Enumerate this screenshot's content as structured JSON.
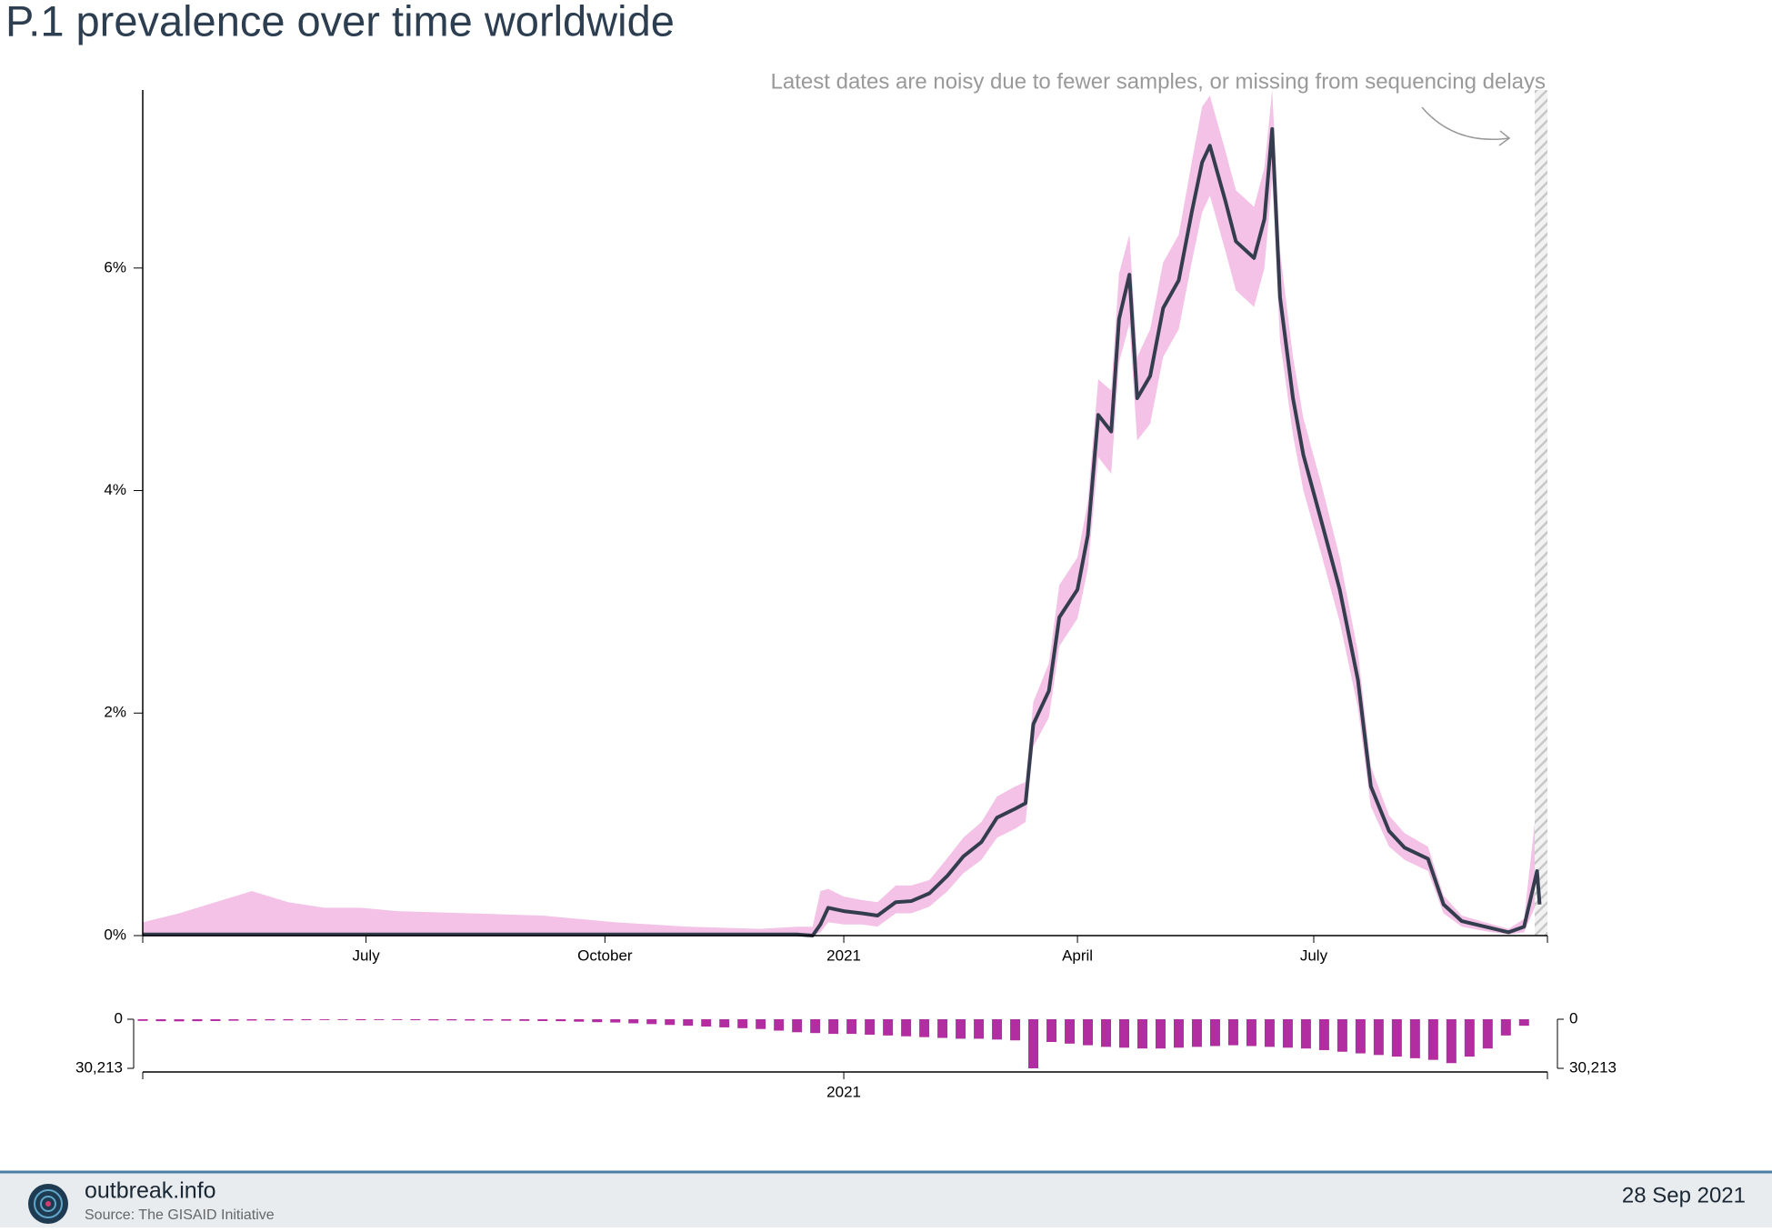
{
  "title": "P.1 prevalence over time worldwide",
  "chart_data": [
    {
      "type": "line",
      "annotation": "Latest dates are noisy due to fewer samples, or missing from sequencing delays",
      "color": "#343d4e",
      "band_color": "#f3c2e6",
      "xlim": [
        0,
        541
      ],
      "xticks": [
        {
          "value": 86,
          "label": "July"
        },
        {
          "value": 178,
          "label": "October"
        },
        {
          "value": 270,
          "label": "2021"
        },
        {
          "value": 360,
          "label": "April"
        },
        {
          "value": 451,
          "label": "July"
        }
      ],
      "ylim": [
        0,
        7.6
      ],
      "yticks": [
        {
          "value": 0,
          "label": "0%"
        },
        {
          "value": 2,
          "label": "2%"
        },
        {
          "value": 4,
          "label": "4%"
        },
        {
          "value": 6,
          "label": "6%"
        }
      ],
      "x": [
        0,
        14,
        28,
        42,
        56,
        70,
        84,
        98,
        126,
        154,
        182,
        210,
        238,
        252,
        258,
        261,
        264,
        270,
        277,
        283,
        290,
        296,
        303,
        310,
        316,
        323,
        329,
        336,
        340,
        343,
        349,
        353,
        360,
        364,
        368,
        373,
        376,
        380,
        383,
        388,
        393,
        399,
        404,
        408,
        411,
        417,
        421,
        428,
        432,
        435,
        438,
        443,
        447,
        454,
        461,
        468,
        473,
        480,
        486,
        495,
        501,
        508,
        517,
        526,
        532,
        537,
        538
      ],
      "values": [
        0.01,
        0.01,
        0.01,
        0.01,
        0.01,
        0.01,
        0.01,
        0.01,
        0.01,
        0.01,
        0.01,
        0.01,
        0.01,
        0.01,
        0.0,
        0.1,
        0.25,
        0.22,
        0.2,
        0.18,
        0.3,
        0.31,
        0.38,
        0.54,
        0.71,
        0.84,
        1.06,
        1.14,
        1.19,
        1.9,
        2.2,
        2.86,
        3.11,
        3.6,
        4.68,
        4.53,
        5.54,
        5.94,
        4.83,
        5.03,
        5.64,
        5.89,
        6.5,
        6.95,
        7.1,
        6.6,
        6.24,
        6.09,
        6.44,
        7.25,
        5.74,
        4.83,
        4.32,
        3.72,
        3.11,
        2.3,
        1.34,
        0.94,
        0.79,
        0.69,
        0.28,
        0.13,
        0.08,
        0.03,
        0.08,
        0.58,
        0.28
      ],
      "lower": [
        0,
        0,
        0,
        0,
        0,
        0,
        0,
        0,
        0,
        0,
        0,
        0,
        0,
        0,
        0,
        0.03,
        0.12,
        0.1,
        0.1,
        0.08,
        0.2,
        0.2,
        0.26,
        0.4,
        0.56,
        0.68,
        0.88,
        0.96,
        1.02,
        1.7,
        1.96,
        2.6,
        2.85,
        3.3,
        4.3,
        4.15,
        5.15,
        5.5,
        4.45,
        4.6,
        5.2,
        5.45,
        6.05,
        6.5,
        6.65,
        6.15,
        5.8,
        5.65,
        6.0,
        6.8,
        5.35,
        4.5,
        4.0,
        3.42,
        2.82,
        2.05,
        1.16,
        0.8,
        0.68,
        0.58,
        0.2,
        0.08,
        0.04,
        0.01,
        0.03,
        0.3,
        0.1
      ],
      "upper": [
        0.12,
        0.2,
        0.3,
        0.4,
        0.3,
        0.25,
        0.25,
        0.22,
        0.2,
        0.18,
        0.12,
        0.08,
        0.06,
        0.08,
        0.08,
        0.4,
        0.42,
        0.35,
        0.32,
        0.3,
        0.45,
        0.45,
        0.5,
        0.7,
        0.88,
        1.02,
        1.25,
        1.34,
        1.38,
        2.1,
        2.45,
        3.15,
        3.4,
        3.9,
        5.0,
        4.9,
        5.95,
        6.3,
        5.2,
        5.45,
        6.05,
        6.3,
        6.95,
        7.45,
        7.55,
        7.05,
        6.7,
        6.55,
        6.9,
        7.6,
        6.15,
        5.2,
        4.65,
        4.05,
        3.4,
        2.55,
        1.52,
        1.08,
        0.92,
        0.8,
        0.36,
        0.18,
        0.12,
        0.06,
        0.15,
        1.2,
        2.2
      ]
    },
    {
      "type": "bar",
      "color": "#b22ea0",
      "xlim": [
        0,
        541
      ],
      "xticks": [
        {
          "value": 270,
          "label": "2021"
        }
      ],
      "ylim": [
        0,
        30213
      ],
      "yticks": [
        0,
        {
          "value": 30213,
          "label": "30,213"
        }
      ],
      "y2lim": [
        0,
        30213
      ],
      "y2ticks": [
        0,
        {
          "value": 30213,
          "label": "30,213"
        }
      ],
      "x": [
        0,
        7,
        14,
        21,
        28,
        35,
        42,
        49,
        56,
        63,
        70,
        77,
        84,
        91,
        98,
        105,
        112,
        119,
        126,
        133,
        140,
        147,
        154,
        161,
        168,
        175,
        182,
        189,
        196,
        203,
        210,
        217,
        224,
        231,
        238,
        245,
        252,
        259,
        266,
        273,
        280,
        287,
        294,
        301,
        308,
        315,
        322,
        329,
        336,
        343,
        350,
        357,
        364,
        371,
        378,
        385,
        392,
        399,
        406,
        413,
        420,
        427,
        434,
        441,
        448,
        455,
        462,
        469,
        476,
        483,
        490,
        497,
        504,
        511,
        518,
        525,
        532
      ],
      "values": [
        1000,
        1200,
        1300,
        1200,
        1100,
        900,
        800,
        700,
        700,
        600,
        500,
        500,
        600,
        500,
        500,
        600,
        700,
        700,
        800,
        800,
        900,
        1000,
        1100,
        1200,
        1500,
        1800,
        2000,
        2500,
        3000,
        3500,
        4000,
        4500,
        5000,
        5500,
        6000,
        7000,
        8000,
        8500,
        9000,
        9000,
        9500,
        10000,
        10500,
        11000,
        11500,
        12000,
        12000,
        12500,
        13000,
        30213,
        14000,
        15000,
        16000,
        17000,
        17500,
        18000,
        18000,
        17500,
        17000,
        16500,
        16000,
        16500,
        17000,
        17500,
        18000,
        19000,
        20000,
        21000,
        22000,
        23000,
        24000,
        25000,
        27000,
        23000,
        18000,
        10000,
        4000
      ]
    }
  ],
  "footer": {
    "site": "outbreak.info",
    "source": "Source: The GISAID Initiative",
    "date": "28 Sep 2021"
  }
}
